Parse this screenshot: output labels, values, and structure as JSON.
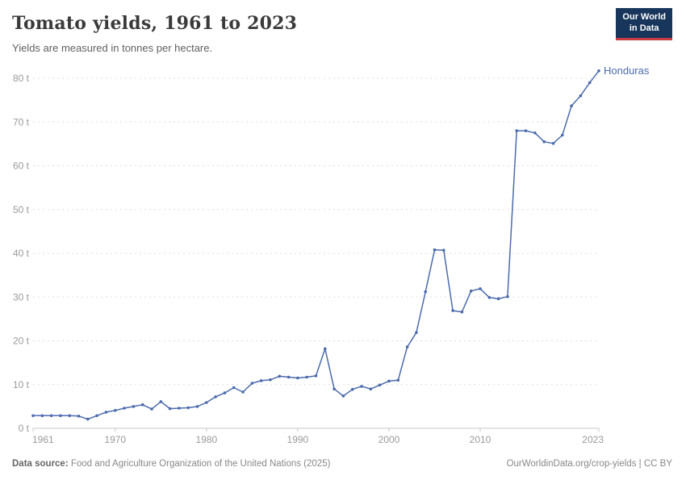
{
  "header": {
    "title": "Tomato yields, 1961 to 2023",
    "subtitle": "Yields are measured in tonnes per hectare.",
    "logo": {
      "line1": "Our World",
      "line2": "in Data"
    }
  },
  "chart_data": {
    "type": "line",
    "title": "Tomato yields, 1961 to 2023",
    "ylabel": "tonnes per hectare",
    "xlabel": "",
    "xlim": [
      1961,
      2023
    ],
    "ylim": [
      0,
      80
    ],
    "grid": "horizontal-dashed",
    "legend_position": "end-of-line-label",
    "x_ticks": [
      {
        "value": 1961,
        "label": "1961",
        "anchor": "start"
      },
      {
        "value": 1970,
        "label": "1970",
        "anchor": "middle"
      },
      {
        "value": 1980,
        "label": "1980",
        "anchor": "middle"
      },
      {
        "value": 1990,
        "label": "1990",
        "anchor": "middle"
      },
      {
        "value": 2000,
        "label": "2000",
        "anchor": "middle"
      },
      {
        "value": 2010,
        "label": "2010",
        "anchor": "middle"
      },
      {
        "value": 2023,
        "label": "2023",
        "anchor": "end"
      }
    ],
    "y_ticks": [
      {
        "value": 0,
        "label": "0 t"
      },
      {
        "value": 10,
        "label": "10 t"
      },
      {
        "value": 20,
        "label": "20 t"
      },
      {
        "value": 30,
        "label": "30 t"
      },
      {
        "value": 40,
        "label": "40 t"
      },
      {
        "value": 50,
        "label": "50 t"
      },
      {
        "value": 60,
        "label": "60 t"
      },
      {
        "value": 70,
        "label": "70 t"
      },
      {
        "value": 80,
        "label": "80 t"
      }
    ],
    "series": [
      {
        "name": "Honduras",
        "color": "#4c6bac",
        "x": [
          1961,
          1962,
          1963,
          1964,
          1965,
          1966,
          1967,
          1968,
          1969,
          1970,
          1971,
          1972,
          1973,
          1974,
          1975,
          1976,
          1977,
          1978,
          1979,
          1980,
          1981,
          1982,
          1983,
          1984,
          1985,
          1986,
          1987,
          1988,
          1989,
          1990,
          1991,
          1992,
          1993,
          1994,
          1995,
          1996,
          1997,
          1998,
          1999,
          2000,
          2001,
          2002,
          2003,
          2004,
          2005,
          2006,
          2007,
          2008,
          2009,
          2010,
          2011,
          2012,
          2013,
          2014,
          2015,
          2016,
          2017,
          2018,
          2019,
          2020,
          2021,
          2022,
          2023
        ],
        "values": [
          2.9,
          2.9,
          2.9,
          2.9,
          2.9,
          2.8,
          2.1,
          2.9,
          3.7,
          4.1,
          4.6,
          5.0,
          5.4,
          4.4,
          6.1,
          4.5,
          4.6,
          4.7,
          5.0,
          5.9,
          7.2,
          8.1,
          9.3,
          8.3,
          10.3,
          10.9,
          11.1,
          11.9,
          11.7,
          11.5,
          11.7,
          12.0,
          18.2,
          9.0,
          7.4,
          8.9,
          9.6,
          9.0,
          9.9,
          10.8,
          11.0,
          18.6,
          21.9,
          31.2,
          40.8,
          40.7,
          26.9,
          26.6,
          31.4,
          31.9,
          29.9,
          29.6,
          30.1,
          68.0,
          68.0,
          67.5,
          65.5,
          65.1,
          67.0,
          73.7,
          76.0,
          79.0,
          81.7
        ]
      }
    ]
  },
  "footer": {
    "datasource_prefix": "Data source:",
    "datasource_text": " Food and Agriculture Organization of the United Nations (2025)",
    "link_text": "OurWorldinData.org/crop-yields",
    "separator": " | ",
    "license_text": "CC BY"
  },
  "colors": {
    "accent_line": "#4c6bac",
    "logo_bg": "#18365c",
    "logo_stripe": "#cc3b42",
    "gridline": "#dddddd",
    "axis_line": "#c8c8c8",
    "tick_text": "#9a9a9a"
  }
}
